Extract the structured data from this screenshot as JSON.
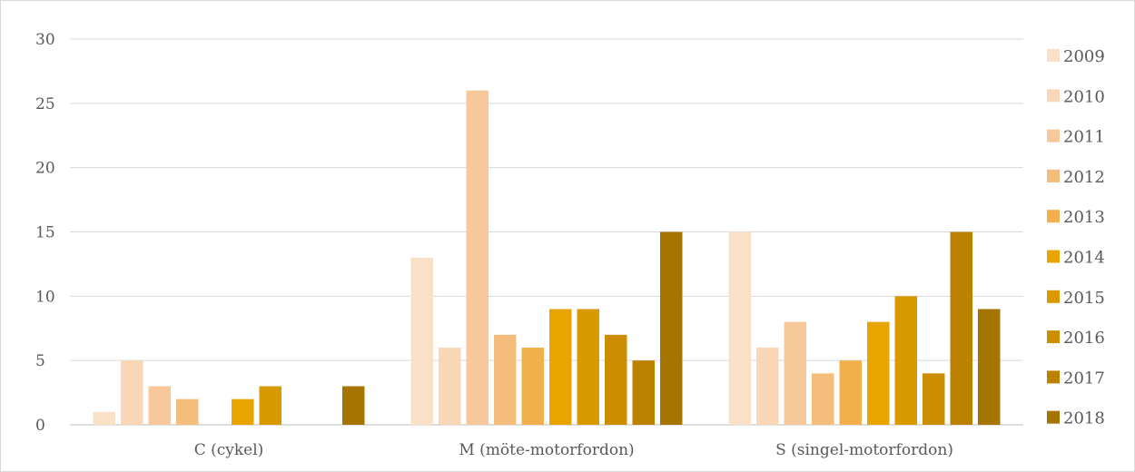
{
  "chart_data": {
    "type": "bar",
    "categories": [
      "C (cykel)",
      "M (möte-motorfordon)",
      "S (singel-motorfordon)"
    ],
    "series": [
      {
        "name": "2009",
        "color": "#fbe0c8",
        "values": [
          1,
          13,
          15
        ]
      },
      {
        "name": "2010",
        "color": "#f9d6b5",
        "values": [
          5,
          6,
          6
        ]
      },
      {
        "name": "2011",
        "color": "#f7c89a",
        "values": [
          3,
          26,
          8
        ]
      },
      {
        "name": "2012",
        "color": "#f4bd7c",
        "values": [
          2,
          7,
          4
        ]
      },
      {
        "name": "2013",
        "color": "#f2af4c",
        "values": [
          0,
          6,
          5
        ]
      },
      {
        "name": "2014",
        "color": "#e8a400",
        "values": [
          2,
          9,
          8
        ]
      },
      {
        "name": "2015",
        "color": "#d99a00",
        "values": [
          3,
          9,
          10
        ]
      },
      {
        "name": "2016",
        "color": "#cc8d00",
        "values": [
          0,
          7,
          4
        ]
      },
      {
        "name": "2017",
        "color": "#bd8100",
        "values": [
          0,
          5,
          15
        ]
      },
      {
        "name": "2018",
        "color": "#a67400",
        "values": [
          3,
          15,
          9
        ]
      }
    ],
    "yticks": [
      0,
      5,
      10,
      15,
      20,
      25,
      30
    ],
    "ylim": [
      0,
      30
    ],
    "grid": true,
    "legend": "right",
    "title": "",
    "xlabel": "",
    "ylabel": ""
  }
}
